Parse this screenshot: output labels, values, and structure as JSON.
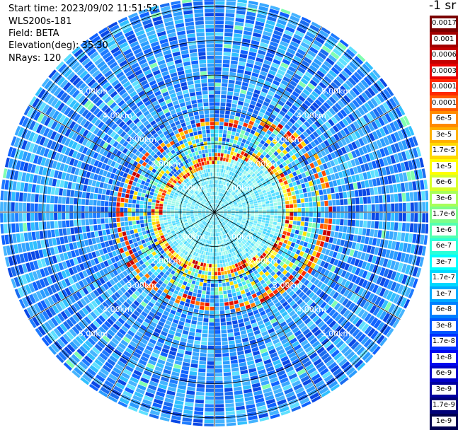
{
  "header": {
    "start_time": "Start time: 2023/09/02 11:51:52",
    "instrument": "WLS200s-181",
    "field": "Field: BETA",
    "elevation": "Elevation(deg): 35.30",
    "nrays": "NRays: 120"
  },
  "units_label": "-1 sr",
  "range_rings": {
    "labels": [
      "1.00km",
      "2.00km",
      "3.00km",
      "4.00km",
      "5.00km"
    ],
    "max_range_km": 6.25,
    "nrays": 120
  },
  "colorbar": {
    "levels": [
      {
        "label": "0.0017",
        "color": "#7a0000"
      },
      {
        "label": "0.001",
        "color": "#a00000"
      },
      {
        "label": "0.0006",
        "color": "#c40000"
      },
      {
        "label": "0.0003",
        "color": "#e80000"
      },
      {
        "label": "0.00017",
        "color": "#ff2a00"
      },
      {
        "label": "0.0001",
        "color": "#ff5a00"
      },
      {
        "label": "6e-5",
        "color": "#ff8a00"
      },
      {
        "label": "3e-5",
        "color": "#ffb000"
      },
      {
        "label": "1.7e-5",
        "color": "#ffd800"
      },
      {
        "label": "1e-5",
        "color": "#ffff00"
      },
      {
        "label": "6e-6",
        "color": "#d8ff28"
      },
      {
        "label": "3e-6",
        "color": "#a8ff58"
      },
      {
        "label": "1.7e-6",
        "color": "#7dff88"
      },
      {
        "label": "1e-6",
        "color": "#55ffb0"
      },
      {
        "label": "6e-7",
        "color": "#2cffd8"
      },
      {
        "label": "3e-7",
        "color": "#00ffff"
      },
      {
        "label": "1.7e-7",
        "color": "#00d8ff"
      },
      {
        "label": "1e-7",
        "color": "#00aaff"
      },
      {
        "label": "6e-8",
        "color": "#0080ff"
      },
      {
        "label": "3e-8",
        "color": "#0058ff"
      },
      {
        "label": "1.7e-8",
        "color": "#0030ff"
      },
      {
        "label": "1e-8",
        "color": "#0008f0"
      },
      {
        "label": "6e-9",
        "color": "#0000c8"
      },
      {
        "label": "3e-9",
        "color": "#0000a0"
      },
      {
        "label": "1.7e-9",
        "color": "#000078"
      },
      {
        "label": "1e-9",
        "color": "#000050"
      }
    ]
  }
}
